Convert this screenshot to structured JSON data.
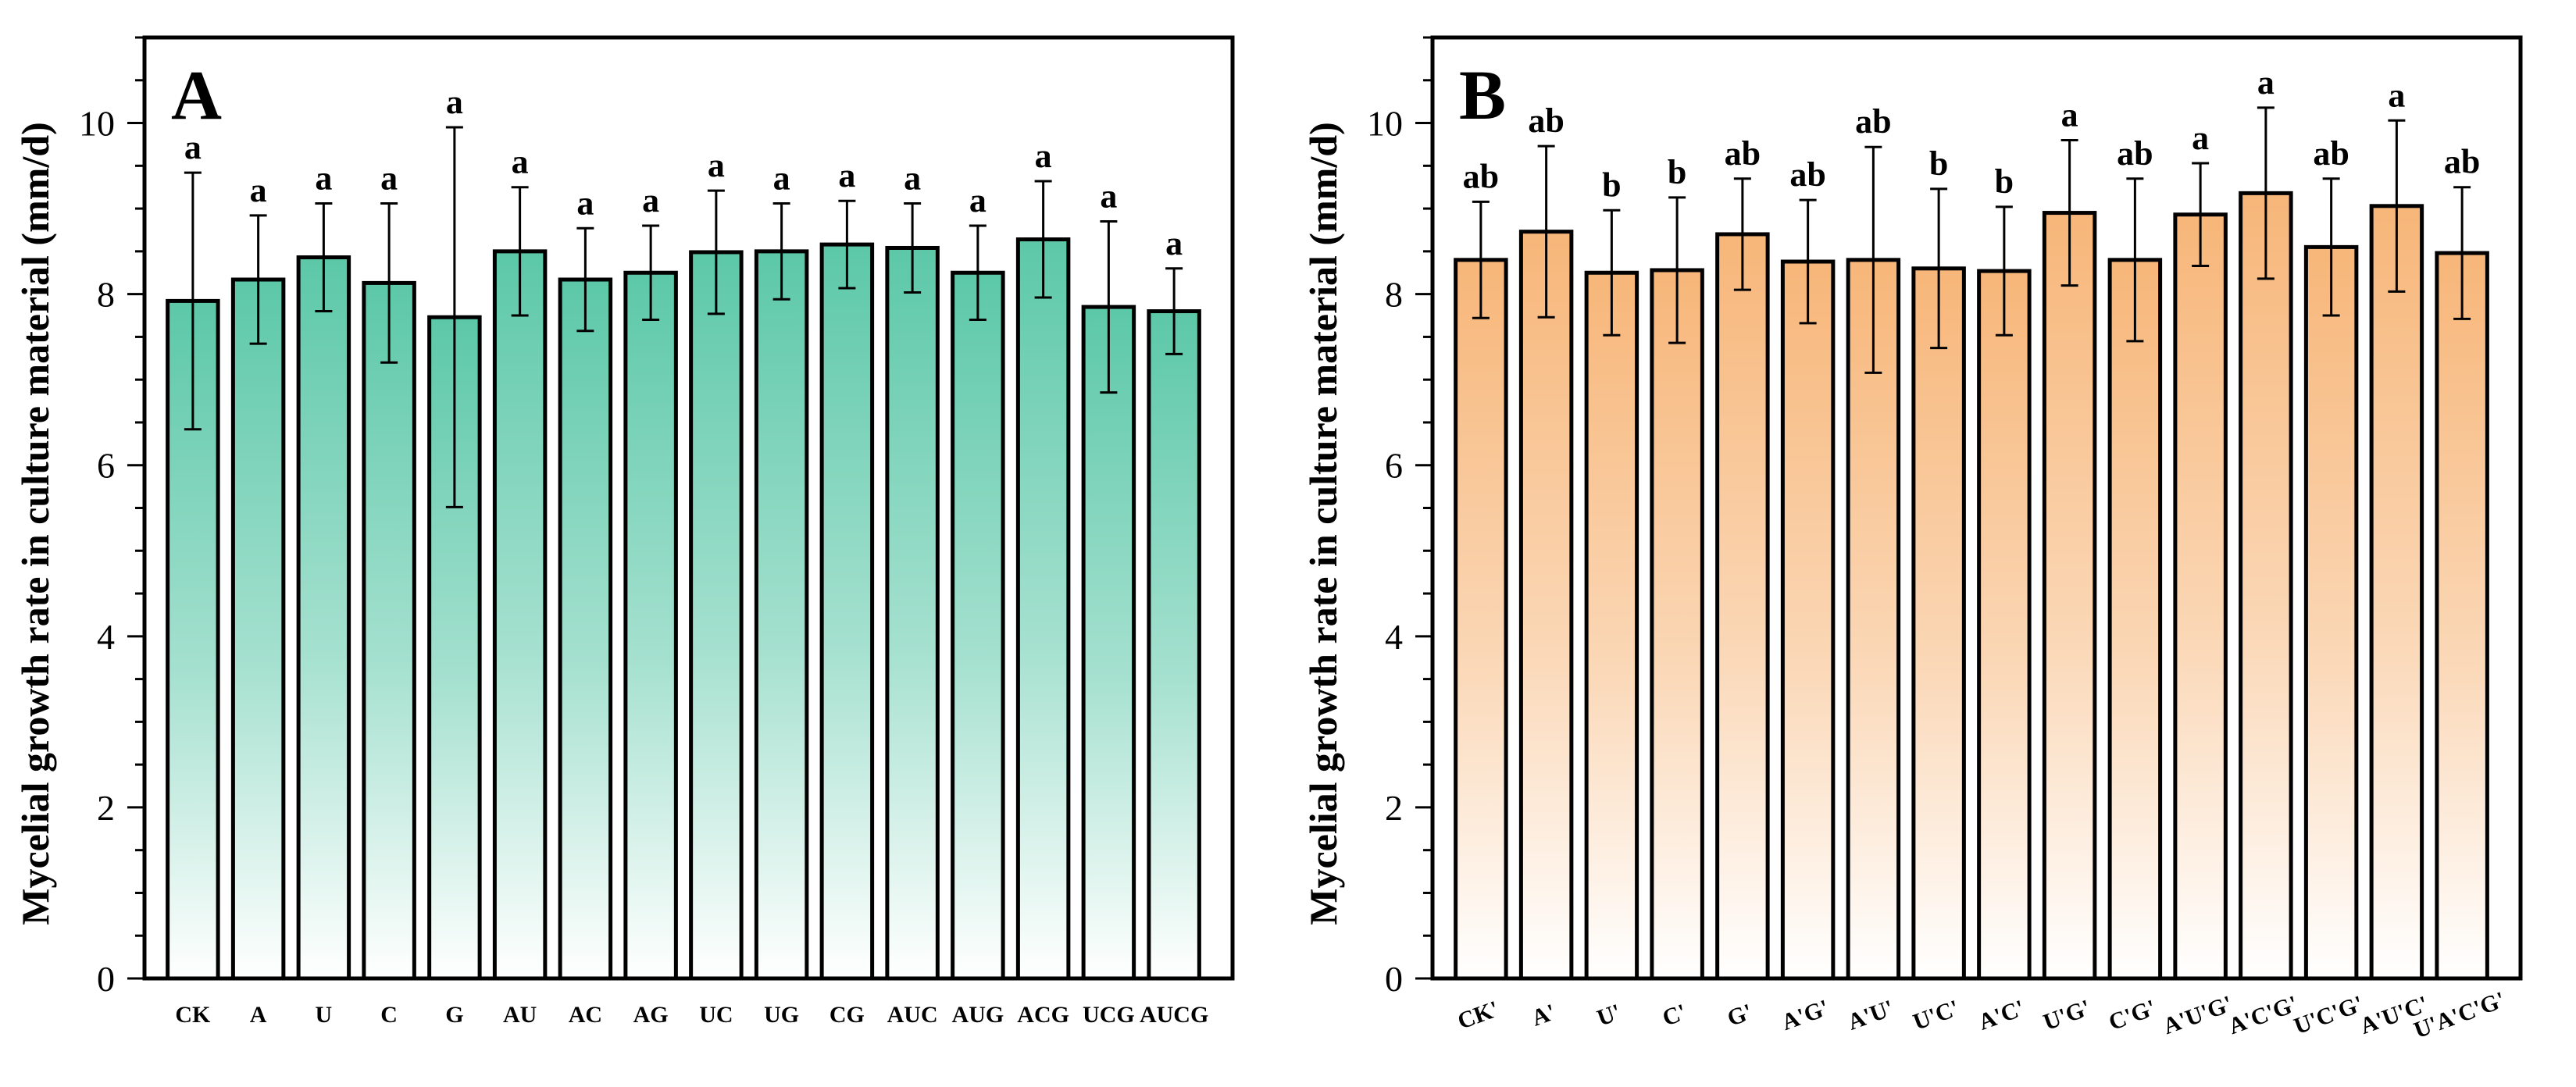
{
  "chart_data": [
    {
      "type": "bar",
      "panel_label": "A",
      "ylabel": "Mycelial growth rate in culture material (mm/d)",
      "xlabel": "",
      "ylim": [
        0,
        11
      ],
      "yticks": [
        0,
        2,
        4,
        6,
        8,
        10
      ],
      "bar_color": "#5cc8a8",
      "categories": [
        "CK",
        "A",
        "U",
        "C",
        "G",
        "AU",
        "AC",
        "AG",
        "UC",
        "UG",
        "CG",
        "AUC",
        "AUG",
        "ACG",
        "UCG",
        "AUCG"
      ],
      "values": [
        7.92,
        8.17,
        8.43,
        8.13,
        7.73,
        8.5,
        8.17,
        8.25,
        8.49,
        8.5,
        8.58,
        8.54,
        8.25,
        8.64,
        7.85,
        7.8
      ],
      "errors": [
        1.5,
        0.75,
        0.63,
        0.93,
        2.22,
        0.75,
        0.6,
        0.55,
        0.72,
        0.56,
        0.51,
        0.52,
        0.55,
        0.68,
        1.0,
        0.5
      ],
      "letters": [
        "a",
        "a",
        "a",
        "a",
        "a",
        "a",
        "a",
        "a",
        "a",
        "a",
        "a",
        "a",
        "a",
        "a",
        "a",
        "a"
      ]
    },
    {
      "type": "bar",
      "panel_label": "B",
      "ylabel": "Mycelial growth rate in culture material (mm/d)",
      "xlabel": "",
      "ylim": [
        0,
        11
      ],
      "yticks": [
        0,
        2,
        4,
        6,
        8,
        10
      ],
      "bar_color": "#f7b679",
      "categories": [
        "CK'",
        "A'",
        "U'",
        "C'",
        "G'",
        "A'G'",
        "A'U'",
        "U'C'",
        "A'C'",
        "U'G'",
        "C'G'",
        "A'U'G'",
        "A'C'G'",
        "U'C'G'",
        "A'U'C'",
        "U'A'C'G'"
      ],
      "values": [
        8.4,
        8.73,
        8.25,
        8.28,
        8.7,
        8.38,
        8.4,
        8.3,
        8.27,
        8.95,
        8.4,
        8.93,
        9.18,
        8.55,
        9.03,
        8.48
      ],
      "errors": [
        0.68,
        1.0,
        0.73,
        0.85,
        0.65,
        0.72,
        1.32,
        0.93,
        0.75,
        0.85,
        0.95,
        0.6,
        1.0,
        0.8,
        1.0,
        0.77
      ],
      "letters": [
        "ab",
        "ab",
        "b",
        "b",
        "ab",
        "ab",
        "ab",
        "b",
        "b",
        "a",
        "ab",
        "a",
        "a",
        "ab",
        "a",
        "ab"
      ]
    }
  ]
}
